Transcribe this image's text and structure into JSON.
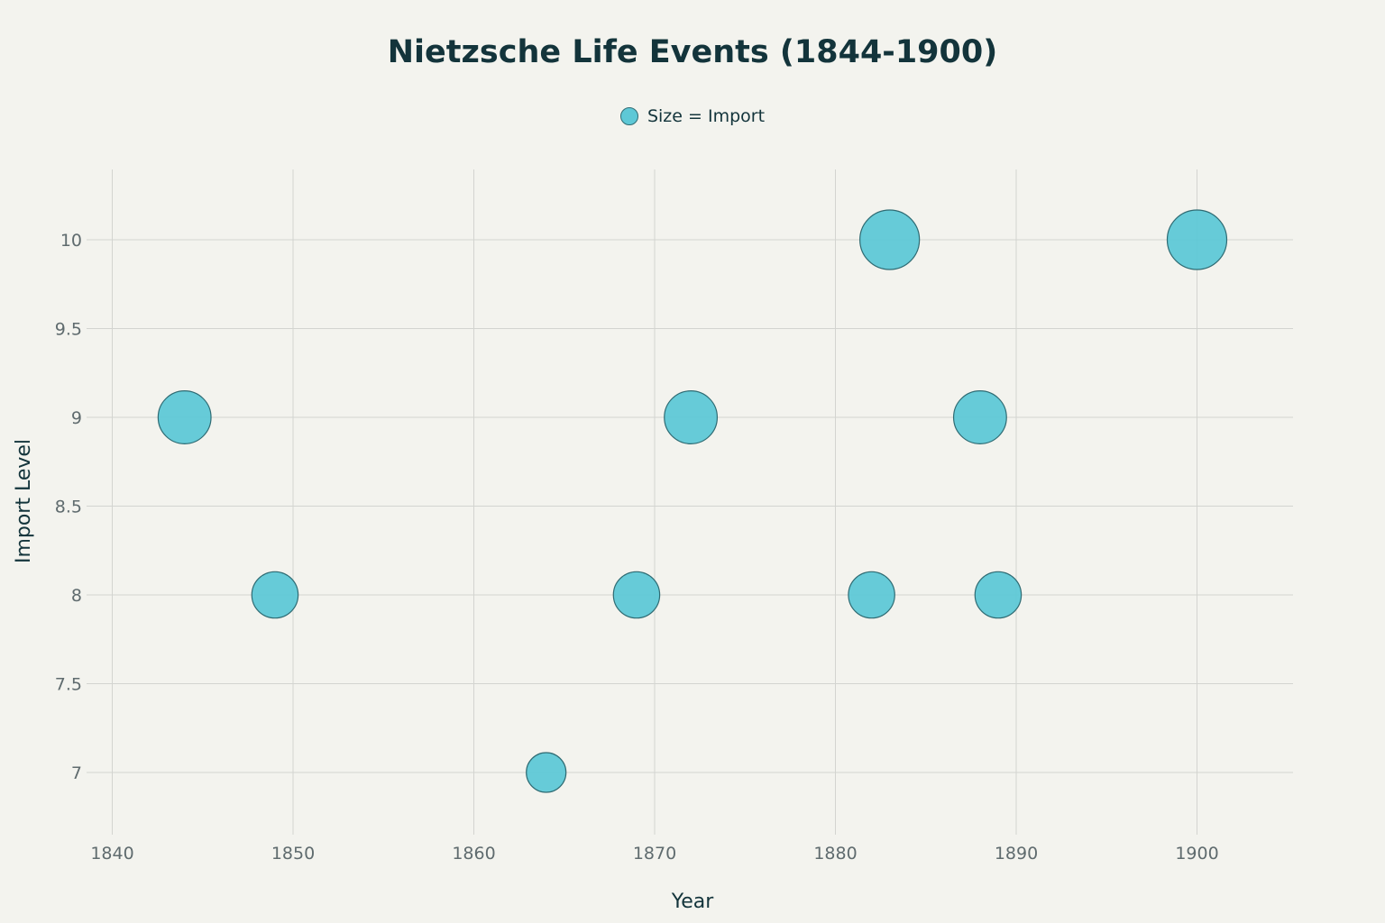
{
  "chart_data": {
    "type": "scatter",
    "title": "Nietzsche Life Events (1844-1900)",
    "xlabel": "Year",
    "ylabel": "Import Level",
    "xlim": [
      1840,
      1905.5
    ],
    "ylim": [
      6.65,
      10.4
    ],
    "x_ticks": [
      1840,
      1850,
      1860,
      1870,
      1880,
      1890,
      1900
    ],
    "y_ticks": [
      7,
      7.5,
      8,
      8.5,
      9,
      9.5,
      10
    ],
    "y_tick_labels": [
      "7",
      "7.5",
      "8",
      "8.5",
      "9",
      "9.5",
      "10"
    ],
    "grid": true,
    "legend_position": "top-center",
    "marker_color": "#5ec8d6",
    "marker_edge_color": "#2f6b73",
    "series": [
      {
        "name": "Size = Import",
        "points": [
          {
            "x": 1844,
            "y": 9,
            "size": 9
          },
          {
            "x": 1849,
            "y": 8,
            "size": 8
          },
          {
            "x": 1864,
            "y": 7,
            "size": 7
          },
          {
            "x": 1869,
            "y": 8,
            "size": 8
          },
          {
            "x": 1872,
            "y": 9,
            "size": 9
          },
          {
            "x": 1882,
            "y": 8,
            "size": 8
          },
          {
            "x": 1883,
            "y": 10,
            "size": 10
          },
          {
            "x": 1888,
            "y": 9,
            "size": 9
          },
          {
            "x": 1889,
            "y": 8,
            "size": 8
          },
          {
            "x": 1900,
            "y": 10,
            "size": 10
          }
        ]
      }
    ]
  }
}
